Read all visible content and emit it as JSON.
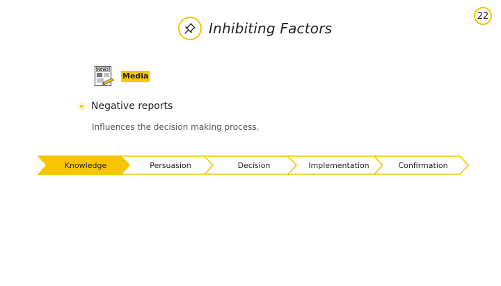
{
  "page_number": "22",
  "title": "Inhibiting Factors",
  "icons": {
    "title": "pushpin-icon",
    "media": "newspaper-icon",
    "bullet": "sun-bullet-icon"
  },
  "media_label": "Media",
  "news_icon_text": "NEWS",
  "bullet": {
    "label": "Negative reports",
    "description": "Influences the decision making process."
  },
  "process_steps": [
    {
      "label": "Knowledge",
      "active": true
    },
    {
      "label": "Persuasion",
      "active": false
    },
    {
      "label": "Decision",
      "active": false
    },
    {
      "label": "Implementation",
      "active": false
    },
    {
      "label": "Confirmation",
      "active": false
    }
  ],
  "colors": {
    "accent": "#f4c400",
    "active_step_fill": "#f7c600",
    "text": "#222222"
  }
}
